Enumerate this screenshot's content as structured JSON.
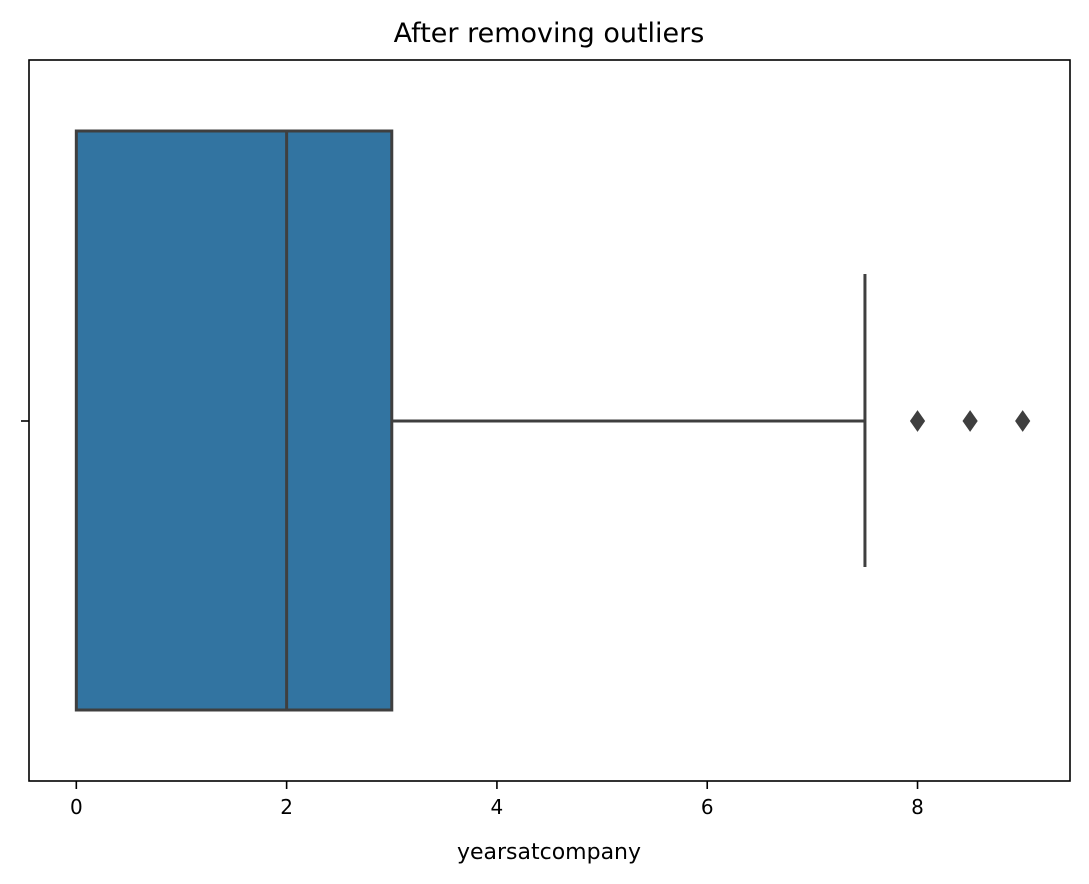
{
  "chart_data": {
    "type": "box",
    "title": "After removing outliers",
    "xlabel": "yearsatcompany",
    "ylabel": "",
    "xlim": [
      -0.45,
      9.45
    ],
    "xticks": [
      0,
      2,
      4,
      6,
      8
    ],
    "grid": false,
    "box": {
      "whisker_low": 0,
      "q1": 0,
      "median": 2,
      "q3": 3,
      "whisker_high": 7.5,
      "fill_color": "#3274a1",
      "line_color": "#3f3f3f"
    },
    "outliers": [
      8,
      8.5,
      9
    ]
  }
}
